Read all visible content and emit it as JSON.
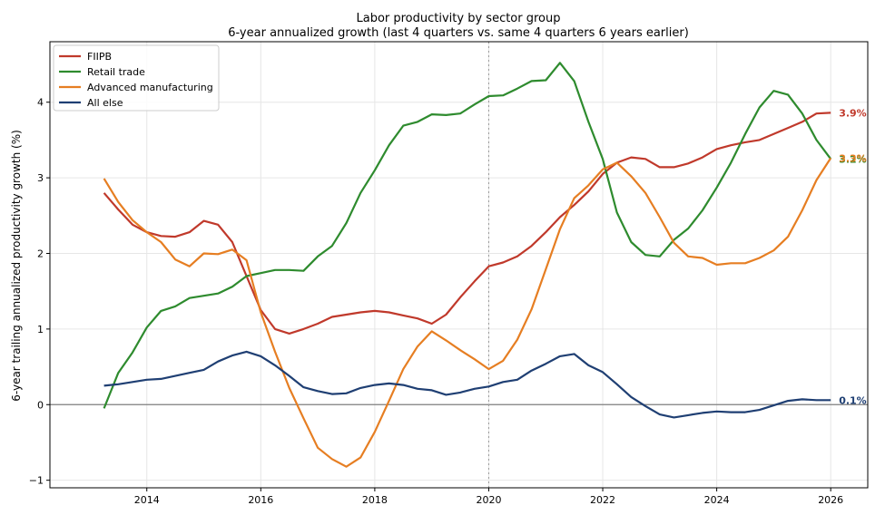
{
  "chart_data": {
    "type": "line",
    "title": "Labor productivity by sector group",
    "subtitle": "6-year annualized growth (last 4 quarters vs. same 4 quarters 6 years earlier)",
    "ylabel": "6-year trailing annualized productivity growth (%)",
    "xlabel": "",
    "xlim": [
      2012.3,
      2026.65
    ],
    "ylim": [
      -1.1,
      4.8
    ],
    "x_ticks": [
      2014,
      2016,
      2018,
      2020,
      2022,
      2024,
      2026
    ],
    "x_tick_labels": [
      "2014",
      "2016",
      "2018",
      "2020",
      "2022",
      "2024",
      "2026"
    ],
    "y_ticks": [
      -1,
      0,
      1,
      2,
      3,
      4
    ],
    "y_tick_labels": [
      "−1",
      "0",
      "1",
      "2",
      "3",
      "4"
    ],
    "grid": true,
    "zero_line": 0,
    "vertical_marker_x": 2020,
    "legend_position": "top-left",
    "x": [
      2013.25,
      2013.5,
      2013.75,
      2014.0,
      2014.25,
      2014.5,
      2014.75,
      2015.0,
      2015.25,
      2015.5,
      2015.75,
      2016.0,
      2016.25,
      2016.5,
      2016.75,
      2017.0,
      2017.25,
      2017.5,
      2017.75,
      2018.0,
      2018.25,
      2018.5,
      2018.75,
      2019.0,
      2019.25,
      2019.5,
      2019.75,
      2020.0,
      2020.25,
      2020.5,
      2020.75,
      2021.0,
      2021.25,
      2021.5,
      2021.75,
      2022.0,
      2022.25,
      2022.5,
      2022.75,
      2023.0,
      2023.25,
      2023.5,
      2023.75,
      2024.0,
      2024.25,
      2024.5,
      2024.75,
      2025.0,
      2025.25,
      2025.5,
      2025.75,
      2026.0
    ],
    "series": [
      {
        "name": "FIIPB",
        "color": "#c0392b",
        "end_label": "3.9%",
        "values": [
          2.8,
          2.58,
          2.38,
          2.28,
          2.23,
          2.22,
          2.28,
          2.43,
          2.38,
          2.15,
          1.7,
          1.25,
          1.0,
          0.94,
          1.0,
          1.07,
          1.16,
          1.19,
          1.22,
          1.24,
          1.22,
          1.18,
          1.14,
          1.07,
          1.19,
          1.42,
          1.63,
          1.83,
          1.88,
          1.96,
          2.1,
          2.28,
          2.48,
          2.64,
          2.82,
          3.05,
          3.2,
          3.27,
          3.25,
          3.14,
          3.14,
          3.19,
          3.27,
          3.38,
          3.43,
          3.47,
          3.5,
          3.58,
          3.66,
          3.74,
          3.85,
          3.86
        ]
      },
      {
        "name": "Retail trade",
        "color": "#2e8b2e",
        "end_label": "3.2%",
        "values": [
          -0.05,
          0.42,
          0.69,
          1.02,
          1.24,
          1.3,
          1.41,
          1.44,
          1.47,
          1.56,
          1.7,
          1.74,
          1.78,
          1.78,
          1.77,
          1.96,
          2.1,
          2.4,
          2.8,
          3.1,
          3.43,
          3.69,
          3.74,
          3.84,
          3.83,
          3.85,
          3.97,
          4.08,
          4.09,
          4.18,
          4.28,
          4.29,
          4.52,
          4.28,
          3.74,
          3.25,
          2.54,
          2.15,
          1.98,
          1.96,
          2.18,
          2.33,
          2.57,
          2.87,
          3.2,
          3.58,
          3.93,
          4.15,
          4.1,
          3.85,
          3.5,
          3.25
        ]
      },
      {
        "name": "Advanced manufacturing",
        "color": "#e67e22",
        "end_label": "3.3%",
        "values": [
          2.99,
          2.68,
          2.44,
          2.28,
          2.15,
          1.92,
          1.83,
          2.0,
          1.99,
          2.05,
          1.91,
          1.22,
          0.7,
          0.22,
          -0.18,
          -0.57,
          -0.72,
          -0.82,
          -0.7,
          -0.36,
          0.05,
          0.47,
          0.77,
          0.97,
          0.85,
          0.72,
          0.6,
          0.47,
          0.58,
          0.86,
          1.26,
          1.79,
          2.32,
          2.73,
          2.9,
          3.11,
          3.2,
          3.02,
          2.8,
          2.48,
          2.14,
          1.96,
          1.94,
          1.85,
          1.87,
          1.87,
          1.94,
          2.04,
          2.22,
          2.57,
          2.97,
          3.26
        ]
      },
      {
        "name": "All else",
        "color": "#1f3f73",
        "end_label": "0.1%",
        "values": [
          0.25,
          0.27,
          0.3,
          0.33,
          0.34,
          0.38,
          0.42,
          0.46,
          0.57,
          0.65,
          0.7,
          0.64,
          0.52,
          0.38,
          0.23,
          0.18,
          0.14,
          0.15,
          0.22,
          0.26,
          0.28,
          0.26,
          0.21,
          0.19,
          0.13,
          0.16,
          0.21,
          0.24,
          0.3,
          0.33,
          0.45,
          0.54,
          0.64,
          0.67,
          0.52,
          0.43,
          0.27,
          0.1,
          -0.02,
          -0.13,
          -0.17,
          -0.14,
          -0.11,
          -0.09,
          -0.1,
          -0.1,
          -0.07,
          -0.01,
          0.05,
          0.07,
          0.06,
          0.06
        ]
      }
    ]
  }
}
